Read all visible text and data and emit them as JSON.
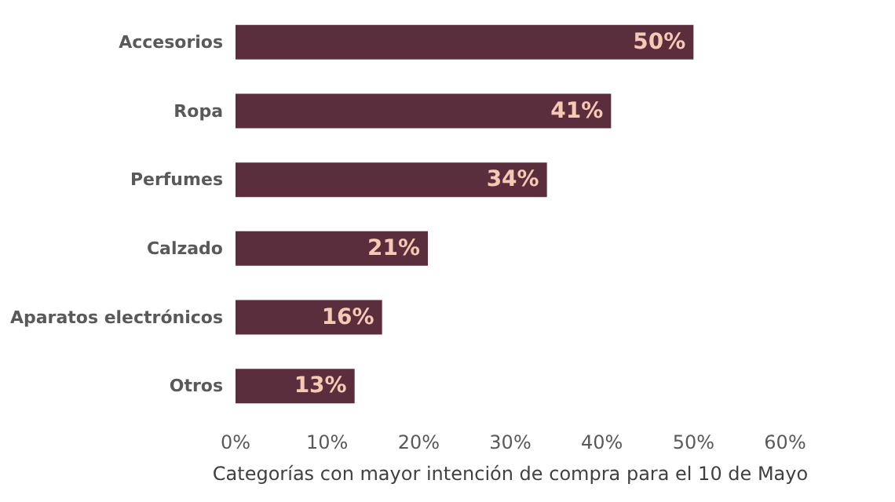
{
  "chart_data": {
    "type": "bar",
    "orientation": "horizontal",
    "xlabel": "Categorías con mayor intención de compra para el 10 de Mayo",
    "categories": [
      "Accesorios",
      "Ropa",
      "Perfumes",
      "Calzado",
      "Aparatos electrónicos",
      "Otros"
    ],
    "values": [
      50,
      41,
      34,
      21,
      16,
      13
    ],
    "color": "#5a2e3c",
    "xlim": [
      0,
      60
    ],
    "xticks": [
      {
        "value": 0,
        "label": "0%"
      },
      {
        "value": 10,
        "label": "10%"
      },
      {
        "value": 20,
        "label": "20%"
      },
      {
        "value": 30,
        "label": "30%"
      },
      {
        "value": 40,
        "label": "40%"
      },
      {
        "value": 50,
        "label": "50%"
      },
      {
        "value": 60,
        "label": "60%"
      }
    ],
    "value_labels": [
      "50%",
      "41%",
      "34%",
      "21%",
      "16%",
      "13%"
    ],
    "grid": false
  }
}
